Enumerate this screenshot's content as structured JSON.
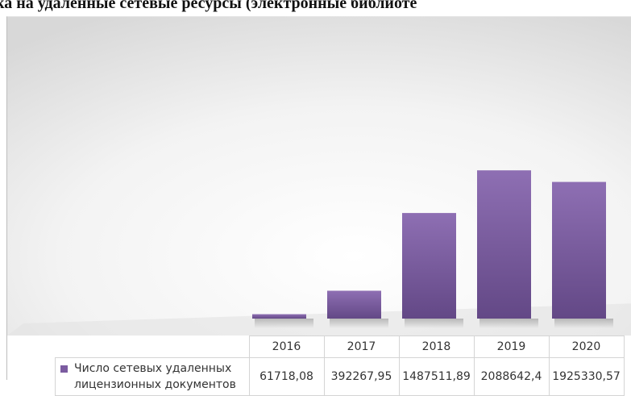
{
  "chart_data": {
    "type": "bar",
    "title": "ка на удаленные сетевые ресурсы (электронные библиоте",
    "categories": [
      "2016",
      "2017",
      "2018",
      "2019",
      "2020"
    ],
    "series": [
      {
        "name": "Число сетевых удаленных лицензионных документов",
        "values": [
          61718.08,
          392267.95,
          1487511.89,
          2088642.4,
          1925330.57
        ],
        "display_values": [
          "61718,08",
          "392267,95",
          "1487511,89",
          "2088642,4",
          "1925330,57"
        ]
      }
    ],
    "ylim": [
      0,
      4250000
    ],
    "grid": false,
    "legend": "data-table",
    "colors": {
      "bar": "#7b5ba0",
      "bar_light": "#8e6fb3",
      "bar_dark": "#634886"
    }
  }
}
